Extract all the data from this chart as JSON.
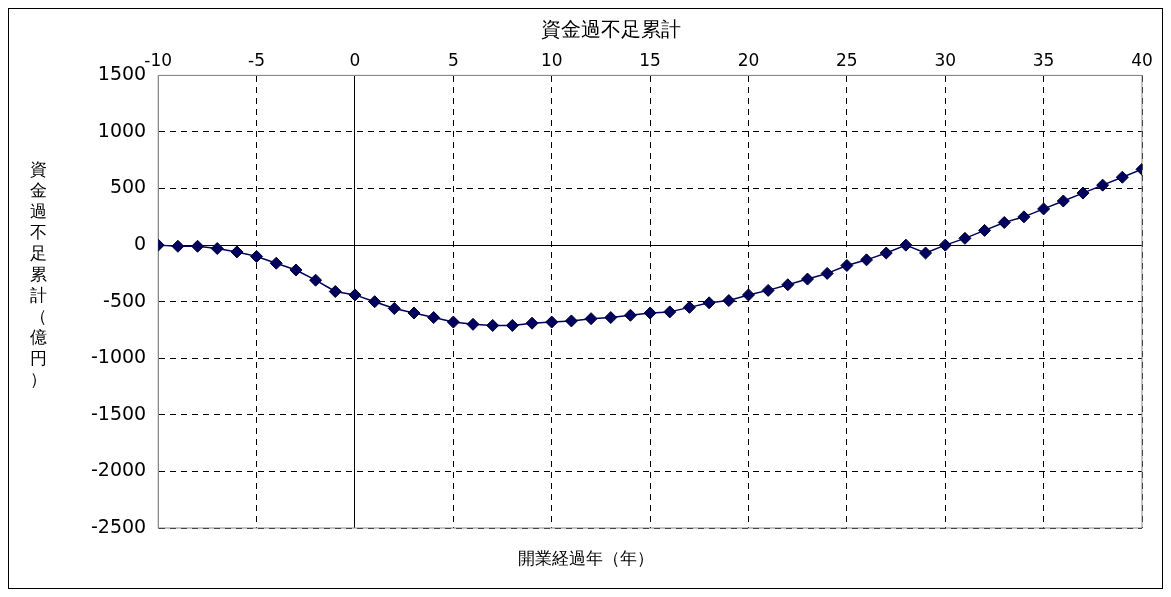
{
  "chart_data": {
    "type": "line",
    "title": "資金過不足累計",
    "xlabel": "開業経過年（年）",
    "ylabel": "資金過不足累計（億円）",
    "x": [
      -10,
      -9,
      -8,
      -7,
      -6,
      -5,
      -4,
      -3,
      -2,
      -1,
      0,
      1,
      2,
      3,
      4,
      5,
      6,
      7,
      8,
      9,
      10,
      11,
      12,
      13,
      14,
      15,
      16,
      17,
      18,
      19,
      20,
      21,
      22,
      23,
      24,
      25,
      26,
      27,
      28,
      29,
      30,
      31,
      32,
      33,
      34,
      35,
      36,
      37,
      38,
      39,
      40
    ],
    "series": [
      {
        "color": "#00005e",
        "values": [
          0,
          -10,
          -10,
          -30,
          -60,
          -100,
          -160,
          -220,
          -310,
          -410,
          -440,
          -500,
          -560,
          -600,
          -640,
          -680,
          -700,
          -710,
          -710,
          -690,
          -680,
          -670,
          -650,
          -640,
          -620,
          -600,
          -590,
          -550,
          -510,
          -490,
          -440,
          -400,
          -350,
          -300,
          -250,
          -180,
          -130,
          -70,
          0,
          -70,
          0,
          60,
          130,
          200,
          250,
          320,
          390,
          460,
          530,
          600,
          670
        ]
      }
    ],
    "xlim": [
      -10,
      40
    ],
    "xticks": [
      -10,
      -5,
      0,
      5,
      10,
      15,
      20,
      25,
      30,
      35,
      40
    ],
    "ylim": [
      -2500,
      1500
    ],
    "yticks": [
      -2500,
      -2000,
      -1500,
      -1000,
      -500,
      0,
      500,
      1000,
      1500
    ],
    "grid": true,
    "legend": false,
    "marker": "diamond",
    "line_style": "solid"
  }
}
